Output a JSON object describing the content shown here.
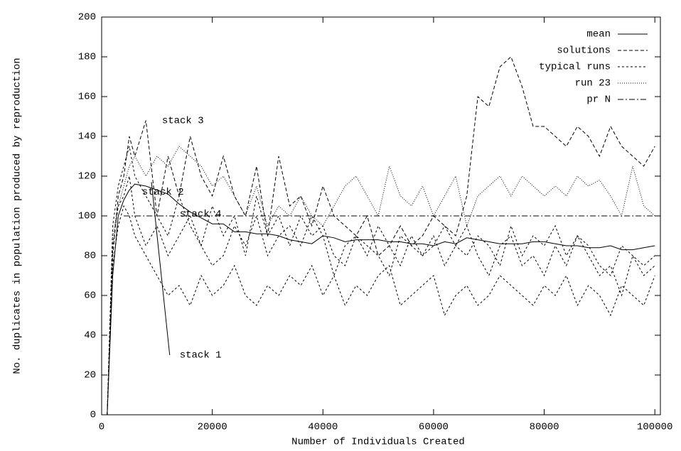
{
  "chart_data": {
    "type": "line",
    "xlabel": "Number of Individuals Created",
    "ylabel": "No. duplicates in population produced by reproduction",
    "xlim": [
      0,
      101000
    ],
    "ylim": [
      0,
      200
    ],
    "xticks": [
      0,
      20000,
      40000,
      60000,
      80000,
      100000
    ],
    "yticks": [
      0,
      20,
      40,
      60,
      80,
      100,
      120,
      140,
      160,
      180,
      200
    ],
    "legend": "upper right",
    "x": [
      1000,
      2000,
      3000,
      4000,
      5000,
      6000,
      8000,
      10000,
      12000,
      14000,
      16000,
      18000,
      20000,
      22000,
      24000,
      26000,
      28000,
      30000,
      32000,
      34000,
      36000,
      38000,
      40000,
      42000,
      44000,
      46000,
      48000,
      50000,
      52000,
      54000,
      56000,
      58000,
      60000,
      62000,
      64000,
      66000,
      68000,
      70000,
      72000,
      74000,
      76000,
      78000,
      80000,
      82000,
      84000,
      86000,
      88000,
      90000,
      92000,
      94000,
      96000,
      98000,
      100000
    ],
    "series": [
      {
        "name": "mean",
        "color": "#000000",
        "dash": "none",
        "values": [
          0,
          70,
          100,
          108,
          113,
          116,
          115,
          113,
          111,
          106,
          102,
          99,
          96,
          96,
          92,
          92,
          91,
          91,
          90,
          88,
          87,
          86,
          90,
          89,
          87,
          88,
          88,
          88,
          87,
          87,
          86,
          86,
          85,
          87,
          86,
          89,
          88,
          87,
          86,
          86,
          86,
          87,
          87,
          86,
          85,
          85,
          84,
          84,
          85,
          83,
          83,
          84,
          85
        ]
      },
      {
        "name": "solutions",
        "color": "#000000",
        "dash": "5,3",
        "values": [
          0,
          80,
          110,
          120,
          140,
          130,
          148,
          100,
          130,
          110,
          140,
          120,
          110,
          130,
          110,
          100,
          125,
          90,
          130,
          105,
          110,
          95,
          115,
          100,
          95,
          90,
          100,
          80,
          85,
          95,
          85,
          90,
          100,
          95,
          90,
          110,
          160,
          155,
          175,
          180,
          165,
          145,
          145,
          140,
          135,
          145,
          140,
          130,
          145,
          135,
          130,
          125,
          135
        ]
      },
      {
        "name": "typical runs",
        "color": "#000000",
        "dash": "3,3",
        "values": [
          [
            0,
            85,
            105,
            110,
            120,
            100,
            85,
            95,
            80,
            90,
            100,
            85,
            75,
            80,
            95,
            85,
            100,
            80,
            90,
            95,
            85,
            100,
            90,
            70,
            85,
            90,
            80,
            95,
            85,
            75,
            90,
            80,
            85,
            95,
            85,
            80,
            90,
            85,
            75,
            95,
            80,
            90,
            85,
            95,
            80,
            90,
            85,
            75,
            70,
            85,
            80,
            75,
            80
          ],
          [
            0,
            75,
            95,
            105,
            100,
            90,
            80,
            70,
            60,
            65,
            55,
            70,
            60,
            65,
            75,
            60,
            55,
            65,
            60,
            70,
            65,
            75,
            60,
            70,
            55,
            65,
            60,
            70,
            75,
            55,
            60,
            65,
            70,
            50,
            60,
            65,
            55,
            60,
            70,
            65,
            60,
            55,
            65,
            60,
            70,
            55,
            65,
            60,
            50,
            65,
            60,
            55,
            70
          ],
          [
            0,
            95,
            115,
            125,
            135,
            120,
            110,
            100,
            90,
            110,
            95,
            85,
            105,
            90,
            100,
            80,
            110,
            90,
            100,
            85,
            100,
            90,
            95,
            80,
            75,
            90,
            85,
            80,
            70,
            90,
            85,
            80,
            90,
            75,
            85,
            95,
            80,
            70,
            85,
            90,
            75,
            80,
            70,
            85,
            75,
            90,
            80,
            70,
            75,
            60,
            80,
            70,
            75
          ]
        ]
      },
      {
        "name": "run 23",
        "color": "#000000",
        "dash": "1,2",
        "values": [
          0,
          90,
          105,
          115,
          125,
          130,
          120,
          130,
          125,
          135,
          130,
          125,
          115,
          120,
          110,
          100,
          115,
          95,
          105,
          100,
          110,
          100,
          95,
          105,
          115,
          120,
          110,
          100,
          125,
          110,
          105,
          115,
          100,
          110,
          120,
          95,
          110,
          115,
          120,
          110,
          120,
          115,
          110,
          115,
          110,
          120,
          115,
          118,
          110,
          100,
          125,
          105,
          100
        ]
      },
      {
        "name": "pr N",
        "color": "#000000",
        "dash": "8,3,2,3",
        "x": [
          4000,
          101000
        ],
        "values": [
          100,
          100
        ]
      }
    ],
    "annotations": [
      {
        "text": "stack 1",
        "x": 14100,
        "y": 30,
        "arrow_x": 9000,
        "arrow_y": 117
      },
      {
        "text": "stack 2",
        "x": 7300,
        "y": 112
      },
      {
        "text": "stack 3",
        "x": 10900,
        "y": 148
      },
      {
        "text": "stack 4",
        "x": 14100,
        "y": 101
      }
    ]
  }
}
